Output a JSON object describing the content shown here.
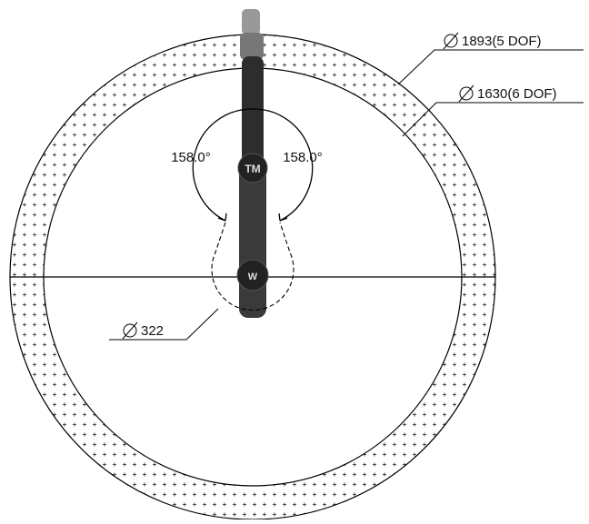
{
  "labels": {
    "outer_diameter": "1893(5 DOF)",
    "inner_diameter": "1630(6 DOF)",
    "left_angle": "158.0°",
    "right_angle": "158.0°",
    "base_diameter": "322"
  }
}
